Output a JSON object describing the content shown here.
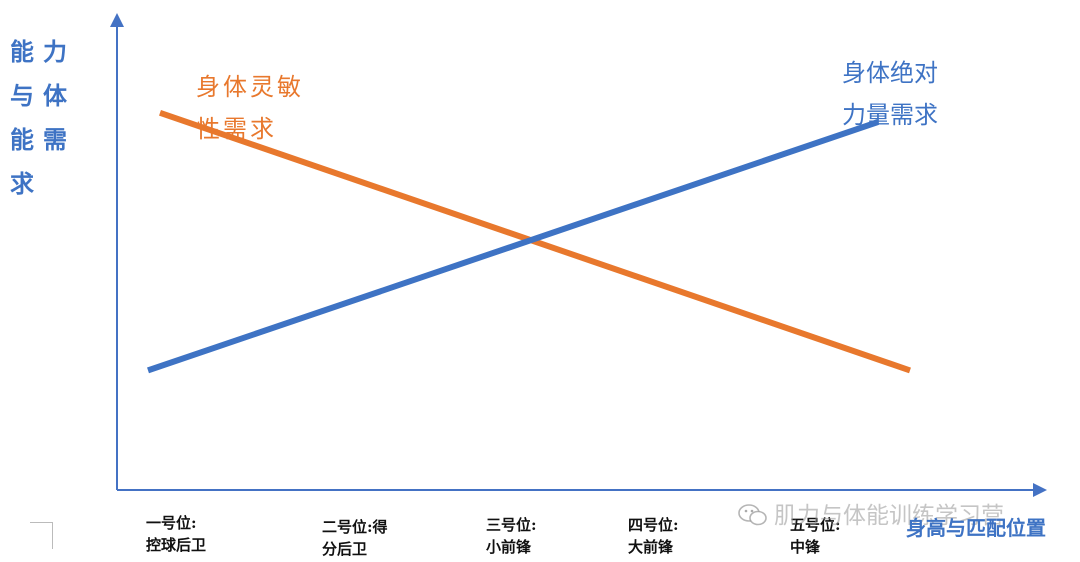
{
  "chart_data": {
    "type": "line",
    "ylabel": "能力与体能需求",
    "xlabel": "身高与匹配位置",
    "categories": [
      "一号位:\n控球后卫",
      "二号位:得\n分后卫",
      "三号位:\n小前锋",
      "四号位:\n大前锋",
      "五号位:\n中锋"
    ],
    "series": [
      {
        "name": "身体灵敏\n性需求",
        "color": "#e8782d",
        "trend": "decreasing",
        "start": 0.82,
        "end": 0.26
      },
      {
        "name": "身体绝对\n力量需求",
        "color": "#3e73c4",
        "trend": "increasing",
        "start": 0.26,
        "end": 0.8
      }
    ],
    "axis_color": "#4472c4",
    "grid": false,
    "legend": "inline-labels"
  },
  "watermark": {
    "text": "肌力与体能训练学习营",
    "icon": "wechat-icon"
  }
}
